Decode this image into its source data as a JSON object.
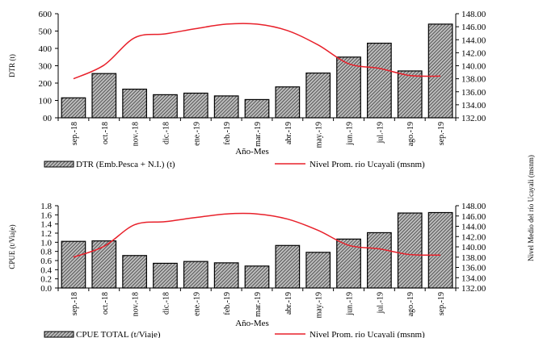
{
  "chart_data": [
    {
      "type": "bar",
      "categories": [
        "sep.-18",
        "oct.-18",
        "nov.-18",
        "dic.-18",
        "ene.-19",
        "feb.-19",
        "mar.-19",
        "abr.-19",
        "may.-19",
        "jun.-19",
        "jul.-19",
        "ago.-19",
        "sep.-19"
      ],
      "series": [
        {
          "name": "DTR (Emb.Pesca + N.I.) (t)",
          "type": "bar",
          "axis": "left",
          "values": [
            115,
            255,
            165,
            133,
            142,
            126,
            105,
            178,
            258,
            350,
            430,
            270,
            540
          ],
          "color": "#555555"
        },
        {
          "name": "Nivel Prom. rio Ucayali  (msnm)",
          "type": "line",
          "axis": "right",
          "values": [
            138.0,
            140.1,
            144.3,
            144.9,
            145.7,
            146.4,
            146.4,
            145.4,
            143.2,
            140.3,
            139.6,
            138.5,
            138.4
          ],
          "color": "#e8202a"
        }
      ],
      "xlabel": "Año-Mes",
      "ylabel": "DTR (t)",
      "ylabel_right": "",
      "ylim": [
        0,
        600
      ],
      "ylim_right": [
        132,
        148
      ],
      "yticks": [
        "00",
        "100",
        "200",
        "300",
        "400",
        "500",
        "600"
      ],
      "yticks_right": [
        "132.00",
        "134.00",
        "136.00",
        "138.00",
        "140.00",
        "142.00",
        "144.00",
        "146.00",
        "148.00"
      ],
      "legend": "bottom",
      "grid": false
    },
    {
      "type": "bar",
      "categories": [
        "sep.-18",
        "oct.-18",
        "nov.-18",
        "dic.-18",
        "ene.-19",
        "feb.-19",
        "mar.-19",
        "abr.-19",
        "may.-19",
        "jun.-19",
        "jul.-19",
        "ago.-19",
        "sep.-19"
      ],
      "series": [
        {
          "name": "CPUE  TOTAL (t/Viaje)",
          "type": "bar",
          "axis": "left",
          "values": [
            1.02,
            1.03,
            0.71,
            0.54,
            0.58,
            0.55,
            0.48,
            0.93,
            0.78,
            1.07,
            1.21,
            1.64,
            1.65
          ],
          "color": "#555555"
        },
        {
          "name": "Nivel Prom. rio Ucayali  (msnm)",
          "type": "line",
          "axis": "right",
          "values": [
            138.0,
            140.1,
            144.3,
            144.9,
            145.7,
            146.4,
            146.4,
            145.4,
            143.2,
            140.3,
            139.6,
            138.5,
            138.4
          ],
          "color": "#e8202a"
        }
      ],
      "xlabel": "Año-Mes",
      "ylabel": "CPUE (t/Viaje)",
      "ylabel_right": "Nivel Medio del río Ucayali (msnm)",
      "ylim": [
        0,
        1.8
      ],
      "ylim_right": [
        132,
        148
      ],
      "yticks": [
        "0.0",
        "0.2",
        "0.4",
        "0.6",
        "0.8",
        "1.0",
        "1.2",
        "1.4",
        "1.6",
        "1.8"
      ],
      "yticks_right": [
        "132.00",
        "134.00",
        "136.00",
        "138.00",
        "140.00",
        "142.00",
        "144.00",
        "146.00",
        "148.00"
      ],
      "legend": "bottom",
      "grid": false
    }
  ]
}
